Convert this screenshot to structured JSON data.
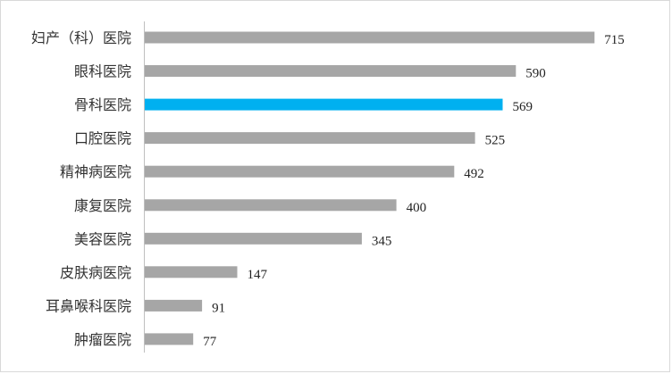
{
  "chart_data": {
    "type": "bar",
    "orientation": "horizontal",
    "categories": [
      "妇产（科）医院",
      "眼科医院",
      "骨科医院",
      "口腔医院",
      "精神病医院",
      "康复医院",
      "美容医院",
      "皮肤病医院",
      "耳鼻喉科医院",
      "肿瘤医院"
    ],
    "values": [
      715,
      590,
      569,
      525,
      492,
      400,
      345,
      147,
      91,
      77
    ],
    "highlight_index": 2,
    "colors": {
      "bar": "#a6a6a6",
      "highlight": "#00b0f0",
      "axis": "#bfbfbf"
    },
    "xlim": [
      0,
      760
    ],
    "grid": false,
    "legend": "none",
    "title": "",
    "xlabel": "",
    "ylabel": ""
  }
}
